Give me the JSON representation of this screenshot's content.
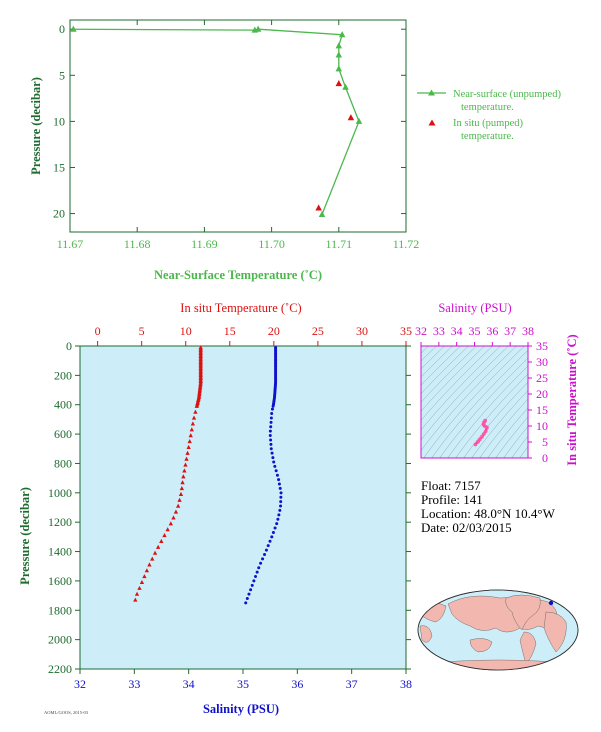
{
  "colors": {
    "green": "#4cb84c",
    "axis_green": "#1e6b2e",
    "red": "#dd1111",
    "blue": "#1111cc",
    "magenta": "#cc11cc",
    "panel_bg": "#cdeef8",
    "land": "#f2b8b0"
  },
  "info": {
    "float": "Float:  7157",
    "profile": "Profile:  141",
    "location": "Location:  48.0°N  10.4°W",
    "date": "Date:  02/03/2015"
  },
  "footer_text": "AOML/GOOS, 2015-03",
  "chart_data": [
    {
      "type": "line",
      "xlabel": "Near-Surface Temperature (˚C)",
      "ylabel": "Pressure (decibar)",
      "xlim": [
        11.67,
        11.72
      ],
      "ylim": [
        22,
        -1
      ],
      "xticks": [
        "11.67",
        "11.68",
        "11.69",
        "11.70",
        "11.71",
        "11.72"
      ],
      "yticks": [
        "0",
        "5",
        "10",
        "15",
        "20"
      ],
      "series": [
        {
          "name": "Near-surface (unpumped) temperature.",
          "marker": "triangle",
          "points": [
            [
              11.6705,
              0.0
            ],
            [
              11.6975,
              0.1
            ],
            [
              11.698,
              0.0
            ],
            [
              11.7105,
              0.6
            ],
            [
              11.71,
              1.8
            ],
            [
              11.71,
              2.8
            ],
            [
              11.71,
              4.3
            ],
            [
              11.711,
              6.3
            ],
            [
              11.713,
              10.0
            ],
            [
              11.7075,
              20.1
            ]
          ]
        },
        {
          "name": "In situ (pumped) temperature.",
          "marker": "triangle",
          "points": [
            [
              11.71,
              5.9
            ],
            [
              11.7118,
              9.6
            ],
            [
              11.707,
              19.4
            ]
          ]
        }
      ]
    },
    {
      "type": "scatter",
      "x_top_label": "In situ Temperature (˚C)",
      "x_bottom_label": "Salinity (PSU)",
      "ylabel": "Pressure (decibar)",
      "temp_xlim": [
        -2,
        35
      ],
      "sal_xlim": [
        32,
        38
      ],
      "ylim": [
        2200,
        0
      ],
      "temp_ticks": [
        "0",
        "5",
        "10",
        "15",
        "20",
        "25",
        "30",
        "35"
      ],
      "sal_ticks": [
        "32",
        "33",
        "34",
        "35",
        "36",
        "37",
        "38"
      ],
      "yticks": [
        "0",
        "200",
        "400",
        "600",
        "800",
        "1000",
        "1200",
        "1400",
        "1600",
        "1800",
        "2000",
        "2200"
      ],
      "temperature": {
        "pressure": [
          10,
          50,
          100,
          150,
          200,
          250,
          300,
          350,
          400,
          450,
          500,
          600,
          700,
          800,
          900,
          1000,
          1100,
          1200,
          1300,
          1400,
          1500,
          1600,
          1700,
          1750
        ],
        "values": [
          11.7,
          11.7,
          11.7,
          11.7,
          11.7,
          11.7,
          11.6,
          11.5,
          11.3,
          11.1,
          10.9,
          10.6,
          10.3,
          10.0,
          9.7,
          9.5,
          9.1,
          8.4,
          7.5,
          6.6,
          5.8,
          5.1,
          4.4,
          4.2
        ]
      },
      "salinity": {
        "pressure": [
          10,
          50,
          100,
          150,
          200,
          250,
          300,
          350,
          400,
          450,
          500,
          600,
          700,
          800,
          900,
          1000,
          1100,
          1200,
          1300,
          1400,
          1500,
          1600,
          1700,
          1750
        ],
        "values": [
          35.6,
          35.6,
          35.6,
          35.6,
          35.6,
          35.6,
          35.59,
          35.58,
          35.56,
          35.53,
          35.52,
          35.5,
          35.52,
          35.57,
          35.65,
          35.7,
          35.69,
          35.63,
          35.53,
          35.42,
          35.3,
          35.2,
          35.1,
          35.05
        ]
      }
    },
    {
      "type": "scatter",
      "xlabel": "Salinity (PSU)",
      "ylabel": "In situ Temperature (˚C)",
      "xlim": [
        32,
        38
      ],
      "ylim": [
        0,
        35
      ],
      "xticks": [
        "32",
        "33",
        "34",
        "35",
        "36",
        "37",
        "38"
      ],
      "yticks": [
        "0",
        "5",
        "10",
        "15",
        "20",
        "25",
        "30",
        "35"
      ],
      "points": [
        [
          35.05,
          4.2
        ],
        [
          35.2,
          5.1
        ],
        [
          35.3,
          5.8
        ],
        [
          35.42,
          6.6
        ],
        [
          35.53,
          7.5
        ],
        [
          35.63,
          8.4
        ],
        [
          35.7,
          9.5
        ],
        [
          35.65,
          9.7
        ],
        [
          35.57,
          10.0
        ],
        [
          35.52,
          10.3
        ],
        [
          35.5,
          10.6
        ],
        [
          35.53,
          11.1
        ],
        [
          35.58,
          11.5
        ],
        [
          35.6,
          11.7
        ]
      ]
    }
  ]
}
